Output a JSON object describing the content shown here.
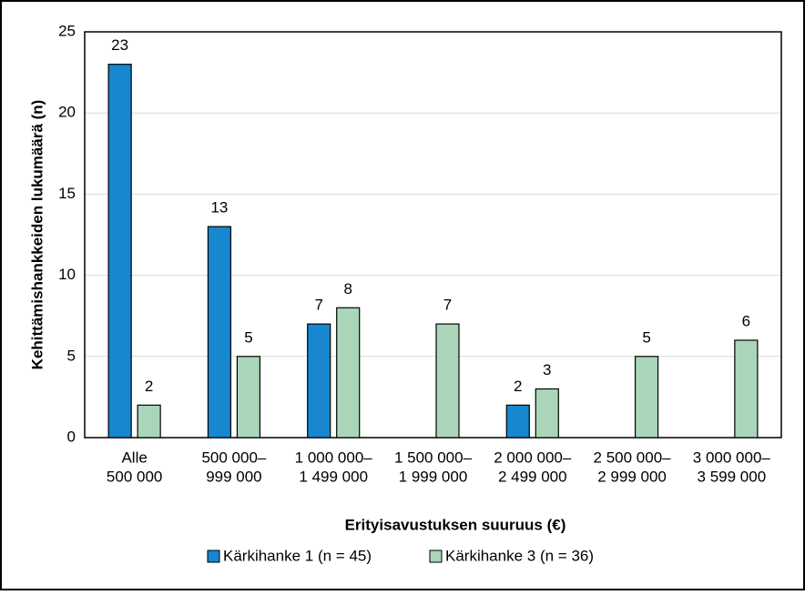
{
  "chart_data": {
    "type": "bar",
    "x_label": "Erityisavustuksen suuruus (€)",
    "y_label": "Kehittämishankkeiden lukumäärä (n)",
    "categories": [
      [
        "Alle",
        "500 000"
      ],
      [
        "500 000–",
        "999 000"
      ],
      [
        "1 000 000–",
        "1 499 000"
      ],
      [
        "1 500 000–",
        "1 999 000"
      ],
      [
        "2 000 000–",
        "2 499 000"
      ],
      [
        "2 500 000–",
        "2 999 000"
      ],
      [
        "3 000 000–",
        "3 599 000"
      ]
    ],
    "series": [
      {
        "name": "Kärkihanke 1 (n = 45)",
        "color": "#1787d0",
        "values": [
          23,
          13,
          7,
          null,
          2,
          null,
          null
        ]
      },
      {
        "name": "Kärkihanke 3 (n = 36)",
        "color": "#a9d6b9",
        "values": [
          2,
          5,
          8,
          7,
          3,
          5,
          6
        ]
      }
    ],
    "ylim": [
      0,
      25
    ],
    "yticks": [
      0,
      5,
      10,
      15,
      20,
      25
    ],
    "grid": true,
    "legend": "bottom"
  }
}
